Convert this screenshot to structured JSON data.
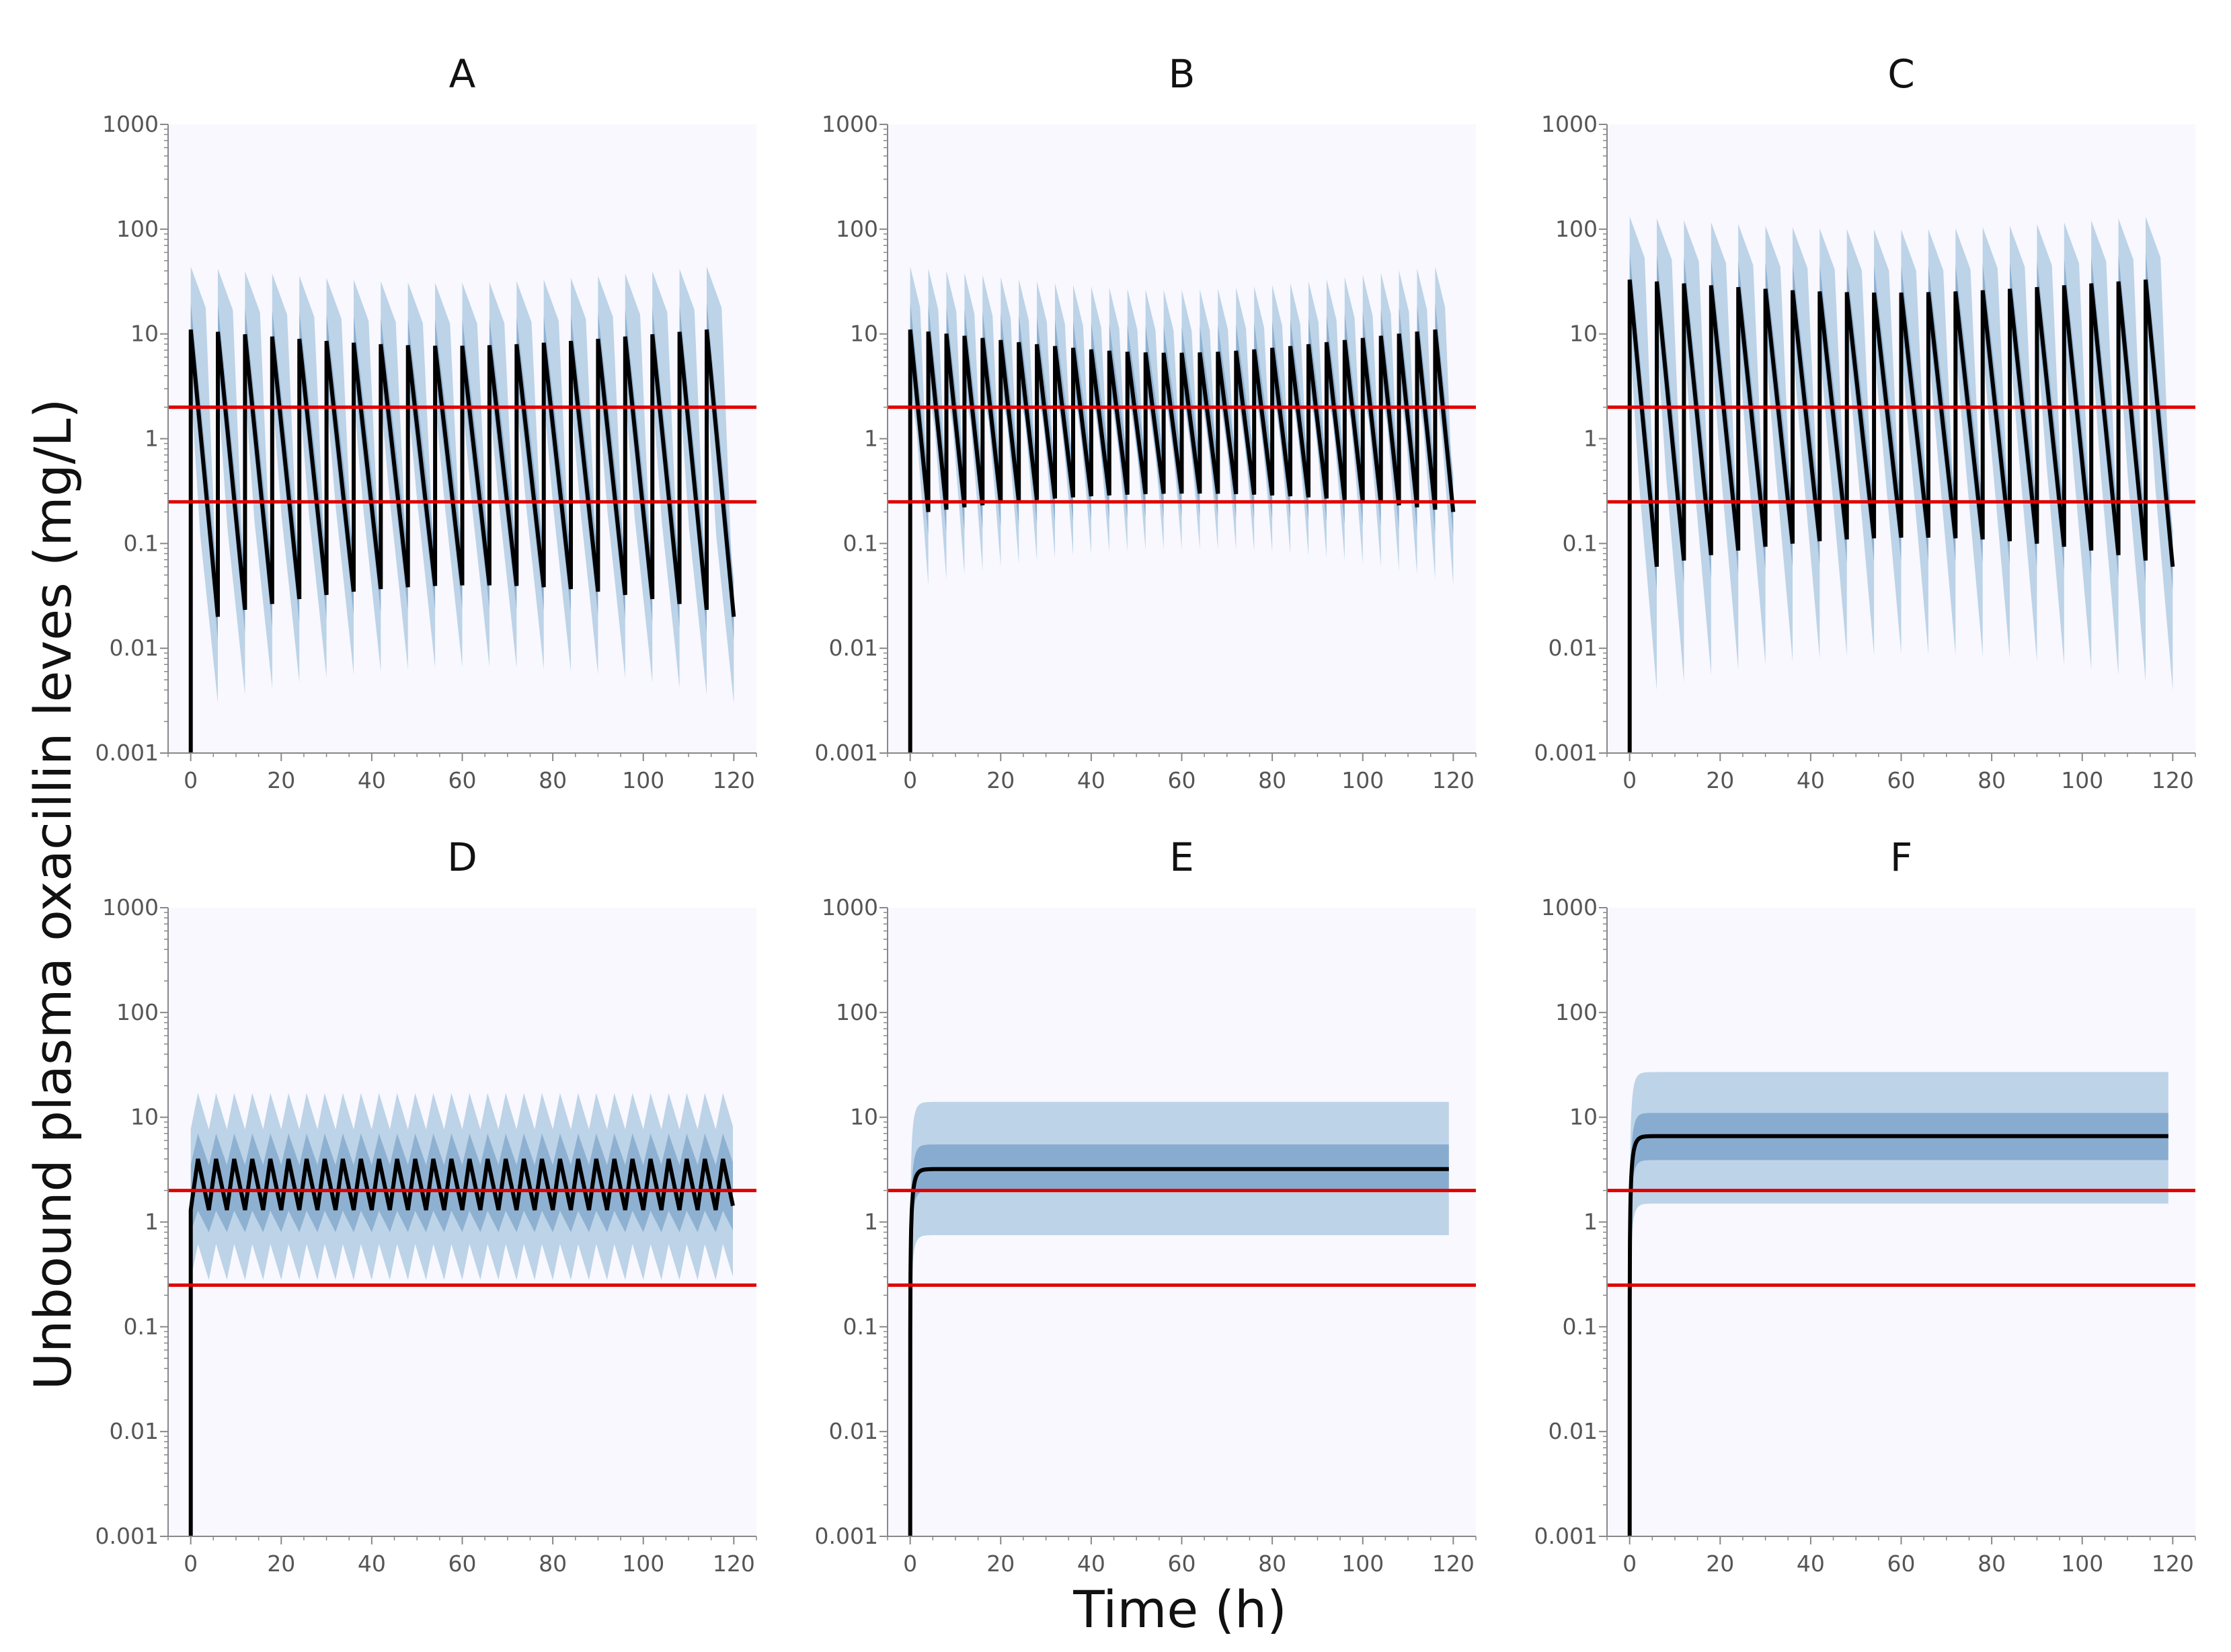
{
  "figure": {
    "ylabel": "Unbound plasma oxacillin leves (mg/L)",
    "xlabel": "Time (h)"
  },
  "colors": {
    "plot_background": "#f8f8fe",
    "band_outer": "#b3cde3",
    "band_inner": "#7ba3c9",
    "median_line": "#000000",
    "threshold_line": "#e00000",
    "axis": "#888888"
  },
  "chart_data": [
    {
      "type": "line",
      "title": "A",
      "yscale": "log",
      "xlim": [
        -5,
        125
      ],
      "ylim": [
        0.001,
        1000
      ],
      "xticks": [
        "0",
        "20",
        "40",
        "60",
        "80",
        "100",
        "120"
      ],
      "yticks": [
        "1000",
        "100",
        "10",
        "1",
        "0.1",
        "0.01",
        "0.001"
      ],
      "thresholds": [
        2,
        0.25
      ],
      "regimen": "intermittent",
      "interval_h": 6,
      "end_h": 120,
      "median_peak": 11,
      "median_trough": 0.02,
      "peak_dip": 0.3,
      "trough_rise": 1.0,
      "band_outer_high_factor": 4,
      "band_outer_low": 0.003
    },
    {
      "type": "line",
      "title": "B",
      "yscale": "log",
      "xlim": [
        -5,
        125
      ],
      "ylim": [
        0.001,
        1000
      ],
      "xticks": [
        "0",
        "20",
        "40",
        "60",
        "80",
        "100",
        "120"
      ],
      "yticks": [
        "1000",
        "100",
        "10",
        "1",
        "0.1",
        "0.01",
        "0.001"
      ],
      "thresholds": [
        2,
        0.25
      ],
      "regimen": "intermittent",
      "interval_h": 4,
      "end_h": 120,
      "median_peak": 11,
      "median_trough": 0.2,
      "peak_dip": 0.4,
      "trough_rise": 0.5,
      "band_outer_high_factor": 4,
      "band_outer_low": 0.04
    },
    {
      "type": "line",
      "title": "C",
      "yscale": "log",
      "xlim": [
        -5,
        125
      ],
      "ylim": [
        0.001,
        1000
      ],
      "xticks": [
        "0",
        "20",
        "40",
        "60",
        "80",
        "100",
        "120"
      ],
      "yticks": [
        "1000",
        "100",
        "10",
        "1",
        "0.1",
        "0.01",
        "0.001"
      ],
      "thresholds": [
        2,
        0.25
      ],
      "regimen": "intermittent",
      "interval_h": 6,
      "end_h": 120,
      "median_peak": 33,
      "median_trough": 0.06,
      "peak_dip": 0.25,
      "trough_rise": 0.9,
      "band_outer_high_factor": 4,
      "band_outer_low": 0.004
    },
    {
      "type": "line",
      "title": "D",
      "yscale": "log",
      "xlim": [
        -5,
        125
      ],
      "ylim": [
        0.001,
        1000
      ],
      "xticks": [
        "0",
        "20",
        "40",
        "60",
        "80",
        "100",
        "120"
      ],
      "yticks": [
        "1000",
        "100",
        "10",
        "1",
        "0.1",
        "0.01",
        "0.001"
      ],
      "thresholds": [
        2,
        0.25
      ],
      "regimen": "extended",
      "interval_h": 4,
      "end_h": 120,
      "median_peak": 4,
      "median_trough": 1.3,
      "band_outer_high": 17,
      "band_outer_low": 0.28,
      "band_inner_high": 7,
      "band_inner_low": 0.8
    },
    {
      "type": "line",
      "title": "E",
      "yscale": "log",
      "xlim": [
        -5,
        125
      ],
      "ylim": [
        0.001,
        1000
      ],
      "xticks": [
        "0",
        "20",
        "40",
        "60",
        "80",
        "100",
        "120"
      ],
      "yticks": [
        "1000",
        "100",
        "10",
        "1",
        "0.1",
        "0.01",
        "0.001"
      ],
      "thresholds": [
        2,
        0.25
      ],
      "regimen": "continuous",
      "end_h": 120,
      "median_steady": 3.2,
      "band_outer_high": 14,
      "band_outer_low": 0.75,
      "band_inner_high": 5.5,
      "band_inner_low": 2
    },
    {
      "type": "line",
      "title": "F",
      "yscale": "log",
      "xlim": [
        -5,
        125
      ],
      "ylim": [
        0.001,
        1000
      ],
      "xticks": [
        "0",
        "20",
        "40",
        "60",
        "80",
        "100",
        "120"
      ],
      "yticks": [
        "1000",
        "100",
        "10",
        "1",
        "0.1",
        "0.01",
        "0.001"
      ],
      "thresholds": [
        2,
        0.25
      ],
      "regimen": "continuous",
      "end_h": 120,
      "median_steady": 6.6,
      "band_outer_high": 27,
      "band_outer_low": 1.5,
      "band_inner_high": 11,
      "band_inner_low": 3.9
    }
  ]
}
